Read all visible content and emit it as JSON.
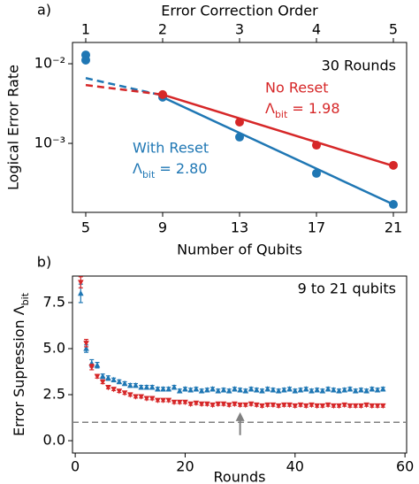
{
  "chart_data": [
    {
      "type": "scatter-fit",
      "panel_label": "a)",
      "xlabel": "Number of Qubits",
      "ylabel": "Logical Error Rate",
      "x2label": "Error Correction Order",
      "annotation": "30 Rounds",
      "xlim": [
        4.31,
        21.69
      ],
      "xticks": [
        5,
        9,
        13,
        17,
        21
      ],
      "x2lim": [
        0.8275,
        5.1725
      ],
      "x2ticks": [
        1,
        2,
        3,
        4,
        5
      ],
      "ylim": [
        0.000136,
        0.0185
      ],
      "log_y": true,
      "yticks": [
        {
          "value": 0.01,
          "label": "10⁻²"
        },
        {
          "value": 0.001,
          "label": "10⁻³"
        }
      ],
      "series": [
        {
          "name": "With Reset",
          "color": "#1f77b4",
          "x": [
            5,
            5,
            9,
            13,
            17,
            21
          ],
          "values": [
            0.0129,
            0.0111,
            0.0038,
            0.0012,
            0.00042,
            0.000171
          ],
          "fit": {
            "x": [
              9,
              21
            ],
            "values": [
              0.0038,
              0.000171
            ]
          },
          "extrapolation": {
            "x": [
              5,
              9
            ],
            "values": [
              0.0066,
              0.004
            ]
          },
          "lambda_label": [
            "Λ",
            "bit",
            " = 2.80"
          ]
        },
        {
          "name": "No Reset",
          "color": "#d62728",
          "x": [
            9,
            13,
            17,
            21
          ],
          "values": [
            0.0041,
            0.00185,
            0.00095,
            0.00053
          ],
          "fit": {
            "x": [
              9,
              21
            ],
            "values": [
              0.0041,
              0.00052
            ]
          },
          "extrapolation": {
            "x": [
              5,
              9
            ],
            "values": [
              0.0054,
              0.0041
            ]
          },
          "lambda_label": [
            "Λ",
            "bit",
            " = 1.98"
          ]
        }
      ]
    },
    {
      "type": "errorbar",
      "panel_label": "b)",
      "xlabel": "Rounds",
      "ylabel": [
        "Error Supression Λ",
        "bit"
      ],
      "annotation": "9 to 21 qubits",
      "xlim": [
        -0.5,
        60.3
      ],
      "xticks": [
        0,
        20,
        40,
        60
      ],
      "ylim": [
        -0.67,
        8.94
      ],
      "yticks": [
        {
          "value": 0,
          "label": "0.0"
        },
        {
          "value": 2.5,
          "label": "2.5"
        },
        {
          "value": 5,
          "label": "5.0"
        },
        {
          "value": 7.5,
          "label": "7.5"
        }
      ],
      "hline": 1,
      "arrow": {
        "x": 30,
        "y": [
          0.3,
          1.45
        ]
      },
      "x": [
        1,
        2,
        3,
        4,
        5,
        6,
        7,
        8,
        9,
        10,
        11,
        12,
        13,
        14,
        15,
        16,
        17,
        18,
        19,
        20,
        21,
        22,
        23,
        24,
        25,
        26,
        27,
        28,
        29,
        30,
        31,
        32,
        33,
        34,
        35,
        36,
        37,
        38,
        39,
        40,
        41,
        42,
        43,
        44,
        45,
        46,
        47,
        48,
        49,
        50,
        51,
        52,
        53,
        54,
        55,
        56
      ],
      "series": [
        {
          "color": "#1f77b4",
          "marker": "up",
          "values": [
            8.0,
            5.0,
            4.2,
            4.1,
            3.5,
            3.4,
            3.3,
            3.2,
            3.1,
            3.0,
            3.0,
            2.9,
            2.9,
            2.9,
            2.8,
            2.8,
            2.8,
            2.9,
            2.7,
            2.8,
            2.75,
            2.8,
            2.7,
            2.75,
            2.8,
            2.7,
            2.75,
            2.7,
            2.8,
            2.75,
            2.7,
            2.8,
            2.75,
            2.7,
            2.8,
            2.75,
            2.7,
            2.75,
            2.8,
            2.7,
            2.75,
            2.8,
            2.7,
            2.75,
            2.7,
            2.8,
            2.75,
            2.7,
            2.75,
            2.8,
            2.7,
            2.75,
            2.7,
            2.8,
            2.75,
            2.8
          ],
          "errors": [
            0.5,
            0.2,
            0.2,
            0.15,
            0.12,
            0.12,
            0.1,
            0.1,
            0.1,
            0.1,
            0.1,
            0.1,
            0.1,
            0.1,
            0.1,
            0.1,
            0.1,
            0.1,
            0.1,
            0.1,
            0.1,
            0.1,
            0.1,
            0.1,
            0.1,
            0.1,
            0.1,
            0.1,
            0.1,
            0.1,
            0.1,
            0.1,
            0.1,
            0.1,
            0.1,
            0.1,
            0.1,
            0.1,
            0.1,
            0.1,
            0.1,
            0.1,
            0.1,
            0.1,
            0.1,
            0.1,
            0.1,
            0.1,
            0.1,
            0.1,
            0.1,
            0.1,
            0.1,
            0.1,
            0.1,
            0.1
          ]
        },
        {
          "color": "#d62728",
          "marker": "down",
          "values": [
            8.6,
            5.3,
            4.0,
            3.5,
            3.2,
            2.9,
            2.8,
            2.7,
            2.6,
            2.5,
            2.4,
            2.4,
            2.3,
            2.3,
            2.2,
            2.2,
            2.2,
            2.1,
            2.1,
            2.1,
            2.0,
            2.05,
            2.0,
            2.0,
            1.95,
            2.0,
            2.0,
            1.95,
            2.0,
            1.95,
            1.95,
            2.0,
            1.95,
            1.9,
            1.95,
            1.95,
            1.9,
            1.95,
            1.95,
            1.9,
            1.95,
            1.9,
            1.95,
            1.9,
            1.9,
            1.95,
            1.9,
            1.9,
            1.95,
            1.9,
            1.9,
            1.9,
            1.95,
            1.9,
            1.9,
            1.9
          ],
          "errors": [
            0.3,
            0.2,
            0.15,
            0.1,
            0.1,
            0.08,
            0.08,
            0.08,
            0.08,
            0.08,
            0.08,
            0.08,
            0.08,
            0.08,
            0.08,
            0.08,
            0.08,
            0.08,
            0.08,
            0.08,
            0.08,
            0.08,
            0.08,
            0.08,
            0.08,
            0.08,
            0.08,
            0.08,
            0.08,
            0.08,
            0.08,
            0.08,
            0.08,
            0.08,
            0.08,
            0.08,
            0.08,
            0.08,
            0.08,
            0.08,
            0.08,
            0.08,
            0.08,
            0.08,
            0.08,
            0.08,
            0.08,
            0.08,
            0.08,
            0.08,
            0.08,
            0.08,
            0.08,
            0.08,
            0.08,
            0.08
          ]
        }
      ]
    }
  ]
}
